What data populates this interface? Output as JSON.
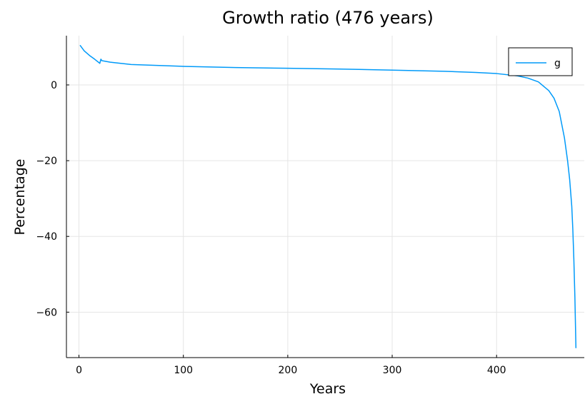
{
  "chart_data": {
    "type": "line",
    "title": "Growth ratio (476 years)",
    "xlabel": "Years",
    "ylabel": "Percentage",
    "xlim": [
      -12,
      484
    ],
    "ylim": [
      -72,
      13
    ],
    "xticks": [
      0,
      100,
      200,
      300,
      400
    ],
    "xtick_labels": [
      "0",
      "100",
      "200",
      "300",
      "400"
    ],
    "yticks": [
      0,
      -20,
      -40,
      -60
    ],
    "ytick_labels": [
      "0",
      "−20",
      "−40",
      "−60"
    ],
    "grid": true,
    "legend_position": "top-right",
    "series": [
      {
        "name": "g",
        "color": "#009af9",
        "x": [
          1,
          5,
          10,
          15,
          20,
          21,
          22,
          30,
          50,
          100,
          150,
          200,
          250,
          300,
          350,
          380,
          400,
          420,
          430,
          440,
          450,
          455,
          460,
          465,
          468,
          470,
          472,
          473,
          474,
          475,
          476
        ],
        "y": [
          10.5,
          9.0,
          7.8,
          6.8,
          5.7,
          6.8,
          6.4,
          6.0,
          5.4,
          4.9,
          4.6,
          4.4,
          4.2,
          3.9,
          3.6,
          3.3,
          3.0,
          2.4,
          1.8,
          0.8,
          -1.5,
          -3.5,
          -7.0,
          -14.0,
          -20.0,
          -25.0,
          -32.0,
          -38.0,
          -46.0,
          -56.0,
          -69.5
        ]
      }
    ]
  }
}
